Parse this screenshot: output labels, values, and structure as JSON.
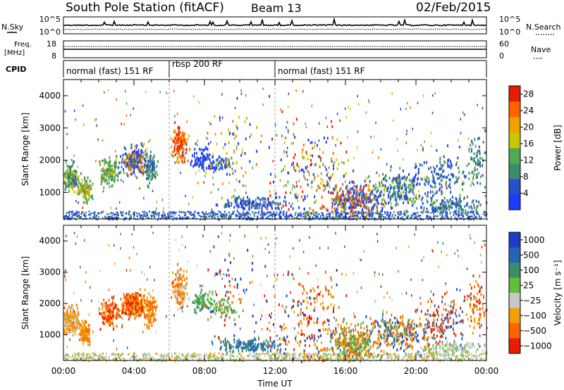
{
  "header": {
    "station": "South Pole Station (fitACF)",
    "beam": "Beam 13",
    "date": "02/Feb/2015"
  },
  "top_panels": {
    "nsky_label": "N.Sky",
    "nsearch_label": "N.Search",
    "noise_ticks": [
      "10^5",
      "10^0"
    ],
    "freq_label_1": "Freq.",
    "freq_label_2": "[MHz]",
    "freq_ticks": [
      "18",
      "8"
    ],
    "nave_label": "Nave",
    "nave_ticks": [
      "60",
      "0"
    ],
    "cpid_label": "CPID",
    "cpid_segments": [
      {
        "label": "normal (fast) 151 RF",
        "start_hour": 0,
        "end_hour": 6
      },
      {
        "label": "rbsp 200 RF",
        "start_hour": 6,
        "end_hour": 12
      },
      {
        "label": "normal (fast) 151 RF",
        "start_hour": 12,
        "end_hour": 24
      }
    ]
  },
  "chart_data": [
    {
      "type": "heatmap",
      "title": "",
      "xlabel": "",
      "ylabel": "Slant Range [km]",
      "xlim": [
        0,
        24
      ],
      "ylim": [
        180,
        4500
      ],
      "yticks": [
        1000,
        2000,
        3000,
        4000
      ],
      "colorbar": {
        "label": "Power [dB]",
        "ticks": [
          4,
          8,
          12,
          16,
          20,
          24,
          28
        ],
        "range": [
          0,
          30
        ],
        "colors": [
          "#1e3cff",
          "#2850c8",
          "#3c8c6e",
          "#50aa50",
          "#c8c800",
          "#f0a000",
          "#ff6400",
          "#e61e00"
        ]
      }
    },
    {
      "type": "heatmap",
      "title": "",
      "xlabel": "Time UT",
      "ylabel": "Slant Range [km]",
      "xlim": [
        0,
        24
      ],
      "ylim": [
        180,
        4500
      ],
      "yticks": [
        1000,
        2000,
        3000,
        4000
      ],
      "xticks": [
        "00:00",
        "04:00",
        "08:00",
        "12:00",
        "16:00",
        "20:00",
        "00:00"
      ],
      "colorbar": {
        "label": "Velocity [m s⁻¹]",
        "ticks": [
          "1000",
          "500",
          "100",
          "25",
          "−25",
          "−100",
          "−500",
          "−1000"
        ],
        "colors": [
          "#1e3cc8",
          "#2864b4",
          "#3c8c6e",
          "#64be3c",
          "#c8c8c8",
          "#f0a000",
          "#ff6400",
          "#e61e00"
        ]
      }
    }
  ]
}
